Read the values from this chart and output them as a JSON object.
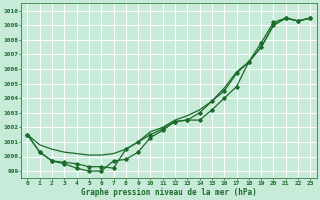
{
  "xlabel": "Graphe pression niveau de la mer (hPa)",
  "xlim": [
    -0.5,
    23.5
  ],
  "ylim": [
    998.5,
    1010.5
  ],
  "yticks": [
    999,
    1000,
    1001,
    1002,
    1003,
    1004,
    1005,
    1006,
    1007,
    1008,
    1009,
    1010
  ],
  "xticks": [
    0,
    1,
    2,
    3,
    4,
    5,
    6,
    7,
    8,
    9,
    10,
    11,
    12,
    13,
    14,
    15,
    16,
    17,
    18,
    19,
    20,
    21,
    22,
    23
  ],
  "bg_color": "#c8ead8",
  "grid_color": "#ffffff",
  "line_color": "#1a6b2a",
  "line1_x": [
    0,
    1,
    2,
    3,
    4,
    5,
    6,
    7,
    8,
    9,
    10,
    11,
    12,
    13,
    14,
    15,
    16,
    17,
    18,
    19,
    20,
    21,
    22,
    23
  ],
  "line1_y": [
    1001.5,
    1000.3,
    999.7,
    999.5,
    999.2,
    999.0,
    999.0,
    999.7,
    999.8,
    1000.3,
    1001.3,
    1001.8,
    1002.4,
    1002.5,
    1002.5,
    1003.2,
    1004.0,
    1004.8,
    1006.5,
    1007.5,
    1009.0,
    1009.5,
    1009.3,
    1009.5
  ],
  "line2_x": [
    0,
    1,
    2,
    3,
    4,
    5,
    6,
    7,
    8,
    9,
    10,
    11,
    12,
    13,
    14,
    15,
    16,
    17,
    18,
    19,
    20,
    21,
    22,
    23
  ],
  "line2_y": [
    1001.5,
    1000.3,
    999.7,
    999.6,
    999.5,
    999.3,
    999.3,
    999.2,
    1000.5,
    1001.0,
    1001.5,
    1001.9,
    1002.4,
    1002.5,
    1003.0,
    1003.8,
    1004.5,
    1005.7,
    1006.5,
    1007.8,
    1009.2,
    1009.5,
    1009.3,
    1009.5
  ],
  "line3_x": [
    0,
    1,
    2,
    3,
    4,
    5,
    6,
    7,
    8,
    9,
    10,
    11,
    12,
    13,
    14,
    15,
    16,
    17,
    18,
    19,
    20,
    21,
    22,
    23
  ],
  "line3_y": [
    1001.5,
    1000.8,
    1000.5,
    1000.3,
    1000.2,
    1000.1,
    1000.1,
    1000.2,
    1000.5,
    1001.0,
    1001.7,
    1002.0,
    1002.5,
    1002.8,
    1003.2,
    1003.8,
    1004.7,
    1005.8,
    1006.5,
    1007.5,
    1009.0,
    1009.5,
    1009.3,
    1009.5
  ]
}
